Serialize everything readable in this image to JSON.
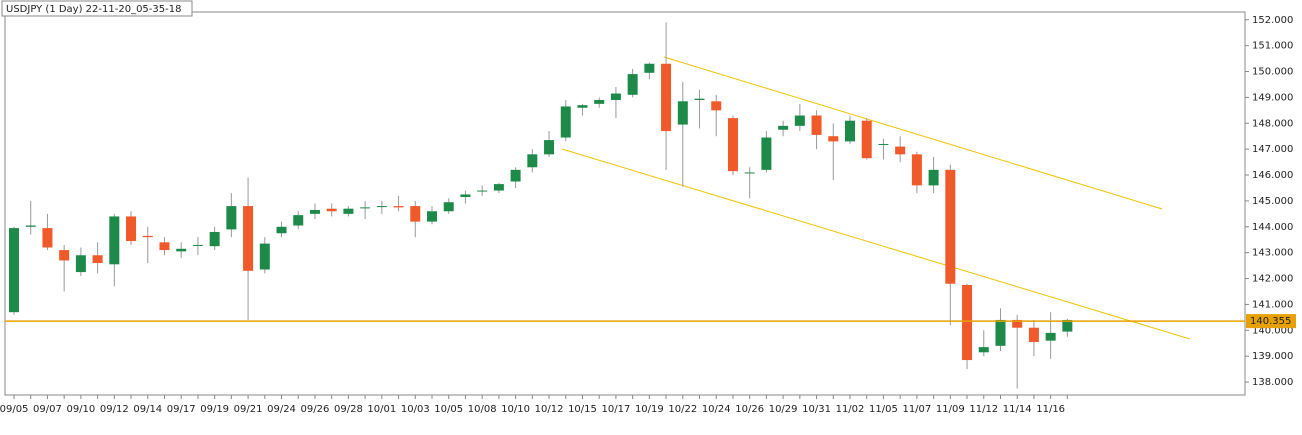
{
  "chart_data": {
    "type": "candlestick",
    "title": "USDJPY (1 Day) 22-11-20_05-35-18",
    "categories": [
      "09/05",
      null,
      "09/07",
      null,
      "09/10",
      null,
      "09/12",
      null,
      "09/14",
      null,
      "09/17",
      null,
      "09/19",
      null,
      "09/21",
      null,
      "09/24",
      null,
      "09/26",
      null,
      "09/28",
      null,
      "10/01",
      null,
      "10/03",
      null,
      "10/05",
      null,
      "10/08",
      null,
      "10/10",
      null,
      "10/12",
      null,
      "10/15",
      null,
      "10/17",
      null,
      "10/19",
      null,
      "10/22",
      null,
      "10/24",
      null,
      "10/26",
      null,
      "10/29",
      null,
      "10/31",
      null,
      "11/02",
      null,
      "11/05",
      null,
      "11/07",
      null,
      "11/09",
      null,
      "11/12",
      null,
      "11/14",
      null,
      "11/16",
      null
    ],
    "open": [
      140.7,
      144.0,
      143.95,
      143.1,
      142.25,
      142.9,
      142.55,
      144.4,
      143.65,
      143.4,
      143.05,
      143.3,
      143.25,
      143.9,
      144.8,
      142.35,
      143.75,
      144.05,
      144.5,
      144.7,
      144.5,
      144.75,
      144.8,
      144.8,
      144.8,
      144.2,
      144.6,
      145.15,
      145.4,
      145.4,
      145.75,
      146.3,
      146.8,
      147.45,
      148.6,
      148.75,
      148.9,
      149.1,
      149.95,
      150.3,
      147.95,
      148.9,
      148.85,
      148.2,
      146.1,
      146.2,
      147.75,
      147.9,
      148.3,
      147.5,
      147.3,
      148.1,
      147.2,
      147.1,
      146.8,
      145.6,
      146.2,
      141.75,
      139.15,
      139.4,
      140.4,
      140.1,
      139.6,
      139.95
    ],
    "high": [
      144.0,
      145.0,
      144.5,
      143.3,
      143.2,
      143.4,
      144.5,
      144.6,
      144.0,
      143.6,
      143.4,
      143.6,
      144.0,
      145.3,
      145.9,
      143.6,
      144.2,
      144.6,
      144.9,
      144.9,
      144.8,
      145.0,
      145.0,
      145.2,
      145.0,
      144.8,
      145.1,
      145.4,
      145.6,
      145.7,
      146.3,
      147.0,
      147.7,
      148.9,
      148.75,
      149.0,
      149.4,
      150.1,
      150.35,
      151.9,
      149.6,
      149.3,
      149.1,
      148.3,
      146.3,
      147.7,
      148.1,
      148.75,
      148.5,
      148.0,
      148.3,
      148.2,
      147.4,
      147.5,
      146.9,
      146.7,
      146.4,
      141.8,
      140.0,
      140.85,
      140.6,
      140.4,
      140.7,
      140.45
    ],
    "low": [
      140.6,
      143.7,
      143.1,
      141.5,
      142.1,
      142.2,
      141.7,
      143.3,
      142.6,
      142.9,
      142.8,
      142.9,
      143.1,
      143.6,
      140.4,
      142.2,
      143.6,
      143.9,
      144.3,
      144.4,
      144.4,
      144.3,
      144.5,
      144.6,
      143.6,
      144.1,
      144.5,
      144.9,
      145.2,
      145.3,
      145.5,
      146.1,
      146.7,
      147.3,
      148.3,
      148.6,
      148.2,
      149.0,
      149.7,
      146.2,
      145.55,
      147.8,
      147.5,
      146.0,
      145.1,
      146.1,
      147.5,
      147.7,
      147.0,
      145.8,
      147.2,
      146.6,
      146.6,
      146.5,
      145.3,
      145.3,
      140.2,
      138.5,
      139.0,
      139.2,
      137.75,
      139.0,
      138.9,
      139.75
    ],
    "close": [
      143.95,
      144.05,
      143.2,
      142.7,
      142.9,
      142.6,
      144.4,
      143.45,
      143.6,
      143.1,
      143.15,
      143.3,
      143.8,
      144.8,
      142.3,
      143.35,
      144.0,
      144.45,
      144.65,
      144.6,
      144.7,
      144.75,
      144.8,
      144.75,
      144.2,
      144.6,
      144.95,
      145.25,
      145.4,
      145.65,
      146.2,
      146.8,
      147.35,
      148.65,
      148.7,
      148.9,
      149.15,
      149.9,
      150.3,
      147.7,
      148.85,
      148.95,
      148.5,
      146.15,
      146.1,
      147.45,
      147.9,
      148.3,
      147.55,
      147.3,
      148.1,
      146.65,
      147.2,
      146.8,
      145.6,
      146.2,
      141.8,
      138.85,
      139.35,
      140.4,
      140.1,
      139.55,
      139.9,
      140.4
    ],
    "up_color": "#1e8a4a",
    "down_color": "#f0592a",
    "last_price": 140.355,
    "last_price_color": "#e6a000",
    "ylim": [
      137.5,
      152.3
    ],
    "yticks": [
      {
        "value": 138,
        "label": "138.000"
      },
      {
        "value": 139,
        "label": "139.000"
      },
      {
        "value": 140,
        "label": "140.000"
      },
      {
        "value": 141,
        "label": "141.000"
      },
      {
        "value": 142,
        "label": "142.000"
      },
      {
        "value": 143,
        "label": "143.000"
      },
      {
        "value": 144,
        "label": "144.000"
      },
      {
        "value": 145,
        "label": "145.000"
      },
      {
        "value": 146,
        "label": "146.000"
      },
      {
        "value": 147,
        "label": "147.000"
      },
      {
        "value": 148,
        "label": "148.000"
      },
      {
        "value": 149,
        "label": "149.000"
      },
      {
        "value": 150,
        "label": "150.000"
      },
      {
        "value": 151,
        "label": "151.000"
      },
      {
        "value": 152,
        "label": "152.000"
      }
    ],
    "grid": false
  }
}
